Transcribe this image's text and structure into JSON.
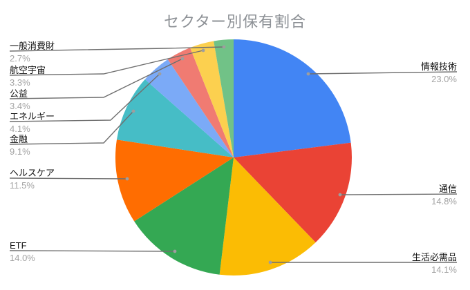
{
  "chart_data": {
    "type": "pie",
    "title": "セクター別保有割合",
    "legend": "none",
    "label_style": "outside-with-leader-lines",
    "start_angle_deg": 0,
    "direction": "clockwise",
    "items": [
      {
        "name": "情報技術",
        "value": 23.0,
        "percent_label": "23.0%",
        "color": "#4285F4"
      },
      {
        "name": "通信",
        "value": 14.8,
        "percent_label": "14.8%",
        "color": "#EA4335"
      },
      {
        "name": "生活必需品",
        "value": 14.1,
        "percent_label": "14.1%",
        "color": "#FBBC04"
      },
      {
        "name": "ETF",
        "value": 14.0,
        "percent_label": "14.0%",
        "color": "#34A853"
      },
      {
        "name": "ヘルスケア",
        "value": 11.5,
        "percent_label": "11.5%",
        "color": "#FF6D01"
      },
      {
        "name": "金融",
        "value": 9.1,
        "percent_label": "9.1%",
        "color": "#46BDC6"
      },
      {
        "name": "エネルギー",
        "value": 4.1,
        "percent_label": "4.1%",
        "color": "#7BAAF7"
      },
      {
        "name": "公益",
        "value": 3.4,
        "percent_label": "3.4%",
        "color": "#F07B72"
      },
      {
        "name": "航空宇宙",
        "value": 3.3,
        "percent_label": "3.3%",
        "color": "#FCD04F"
      },
      {
        "name": "一般消費財",
        "value": 2.7,
        "percent_label": "2.7%",
        "color": "#71C287"
      }
    ]
  },
  "colors": {
    "background": "#ffffff",
    "title_text": "#8d9196",
    "label_text": "#111111",
    "percent_text": "#a3a3a3",
    "leader_line": "#6f6f6f",
    "leader_dot": "#9e9e9e"
  }
}
